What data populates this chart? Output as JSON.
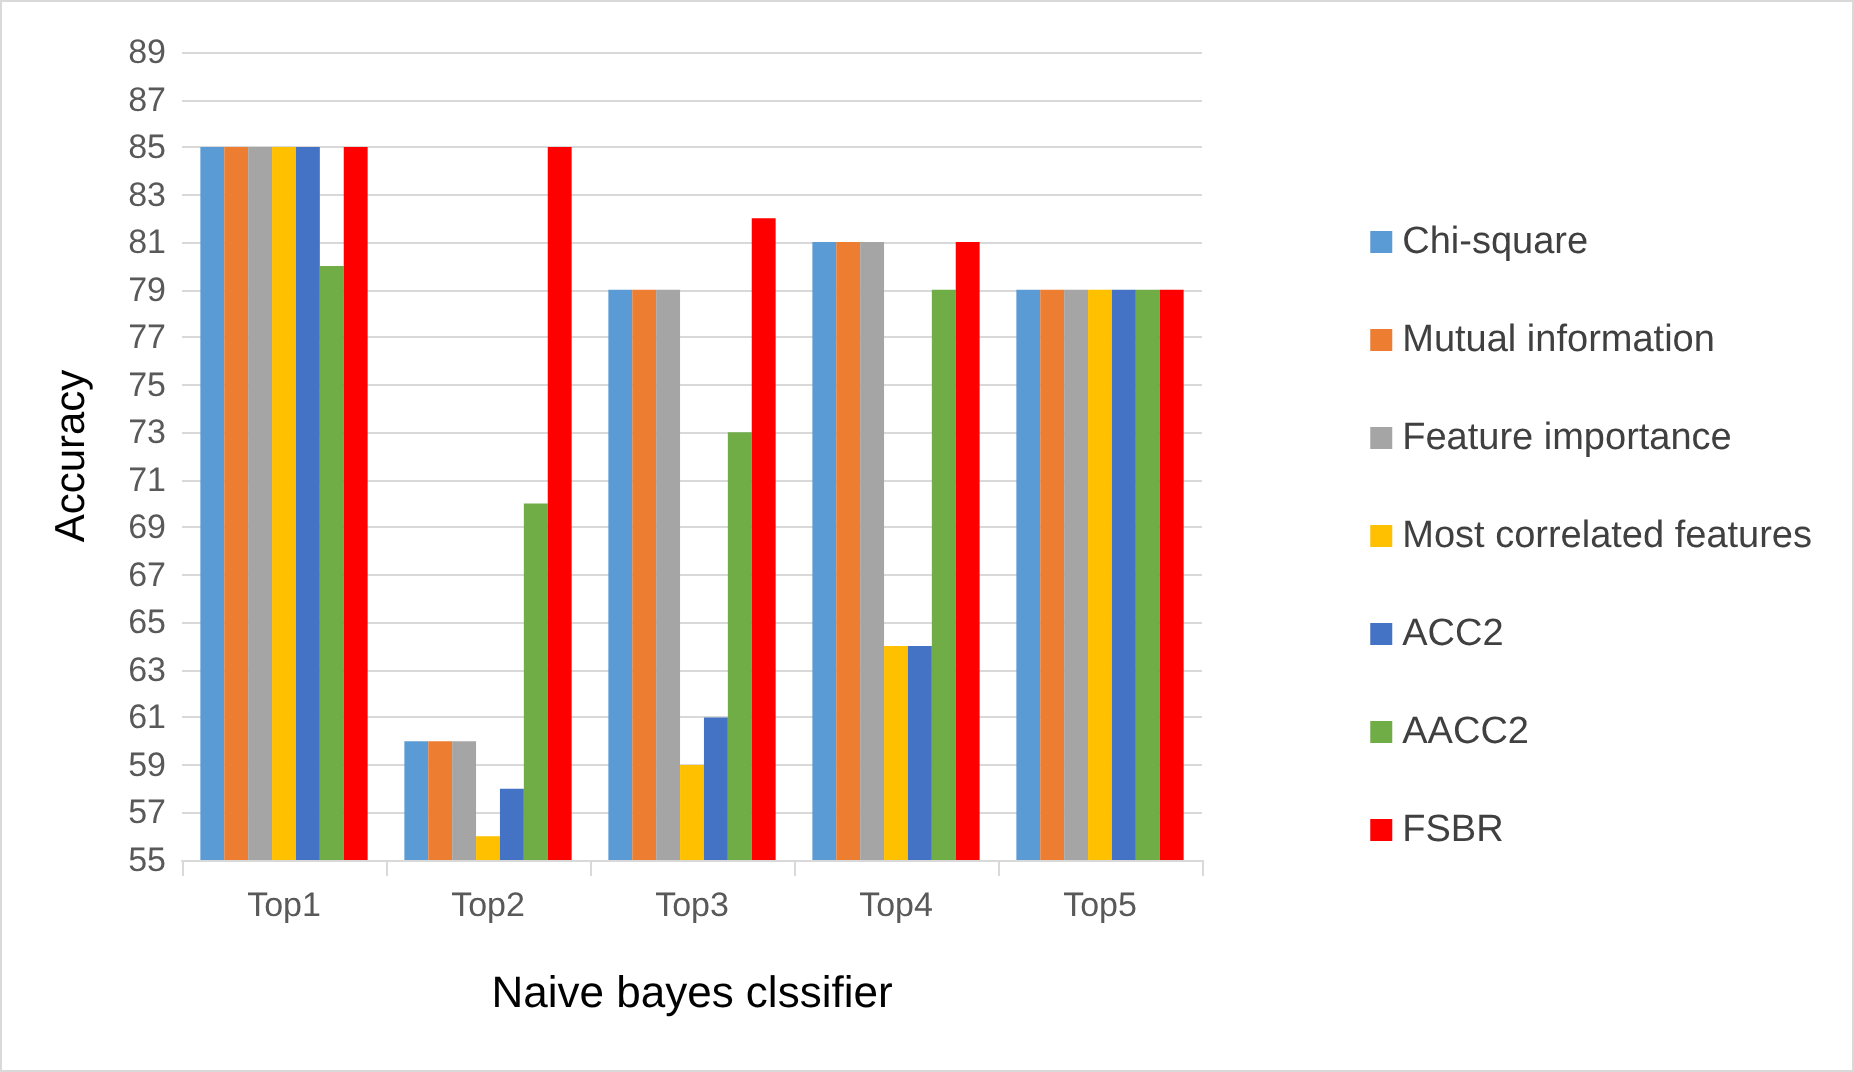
{
  "chart_data": {
    "type": "bar",
    "xlabel": "Naive bayes clssifier",
    "ylabel": "Accuracy",
    "categories": [
      "Top1",
      "Top2",
      "Top3",
      "Top4",
      "Top5"
    ],
    "series": [
      {
        "name": "Chi-square",
        "color": "#5b9bd5",
        "values": [
          85,
          60,
          79,
          81,
          79
        ]
      },
      {
        "name": "Mutual information",
        "color": "#ed7d31",
        "values": [
          85,
          60,
          79,
          81,
          79
        ]
      },
      {
        "name": "Feature importance",
        "color": "#a5a5a5",
        "values": [
          85,
          60,
          79,
          81,
          79
        ]
      },
      {
        "name": "Most correlated features",
        "color": "#ffc000",
        "values": [
          85,
          56,
          59,
          64,
          79
        ]
      },
      {
        "name": "ACC2",
        "color": "#4472c4",
        "values": [
          85,
          58,
          61,
          64,
          79
        ]
      },
      {
        "name": "AACC2",
        "color": "#70ad47",
        "values": [
          80,
          70,
          73,
          79,
          79
        ]
      },
      {
        "name": "FSBR",
        "color": "#ff0000",
        "values": [
          85,
          85,
          82,
          81,
          79
        ]
      }
    ],
    "ylim": [
      55,
      89
    ],
    "yticks": [
      55,
      57,
      59,
      61,
      63,
      65,
      67,
      69,
      71,
      73,
      75,
      77,
      79,
      81,
      83,
      85,
      87,
      89
    ],
    "grid": "y",
    "legend": "right"
  }
}
